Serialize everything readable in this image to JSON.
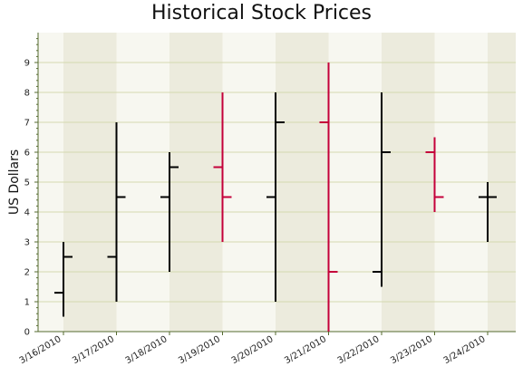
{
  "chart_data": {
    "type": "ohlc",
    "title": "Historical Stock Prices",
    "ylabel": "US Dollars",
    "xlabel": "",
    "ylim": [
      0,
      10
    ],
    "yticks": [
      0,
      1,
      2,
      3,
      4,
      5,
      6,
      7,
      8,
      9
    ],
    "categories": [
      "3/16/2010",
      "3/17/2010",
      "3/18/2010",
      "3/19/2010",
      "3/20/2010",
      "3/21/2010",
      "3/22/2010",
      "3/23/2010",
      "3/24/2010"
    ],
    "series": [
      {
        "open": [
          1.3,
          2.5,
          4.5,
          5.5,
          4.5,
          7.0,
          2.0,
          6.0,
          4.5
        ],
        "high": [
          3.0,
          7.0,
          6.0,
          8.0,
          8.0,
          9.0,
          8.0,
          6.5,
          5.0
        ],
        "low": [
          0.5,
          1.0,
          2.0,
          3.0,
          1.0,
          0.0,
          1.5,
          4.0,
          3.0
        ],
        "close": [
          2.5,
          4.5,
          5.5,
          4.5,
          7.0,
          2.0,
          6.0,
          4.5,
          4.5
        ]
      }
    ],
    "colors": {
      "up": "#000000",
      "down": "#c4003a",
      "band_light": "#f7f7f0",
      "band_dark": "#ecebdd",
      "gridline": "#d4d8b0",
      "axis": "#556b2f"
    },
    "grid": true,
    "legend": "none"
  }
}
